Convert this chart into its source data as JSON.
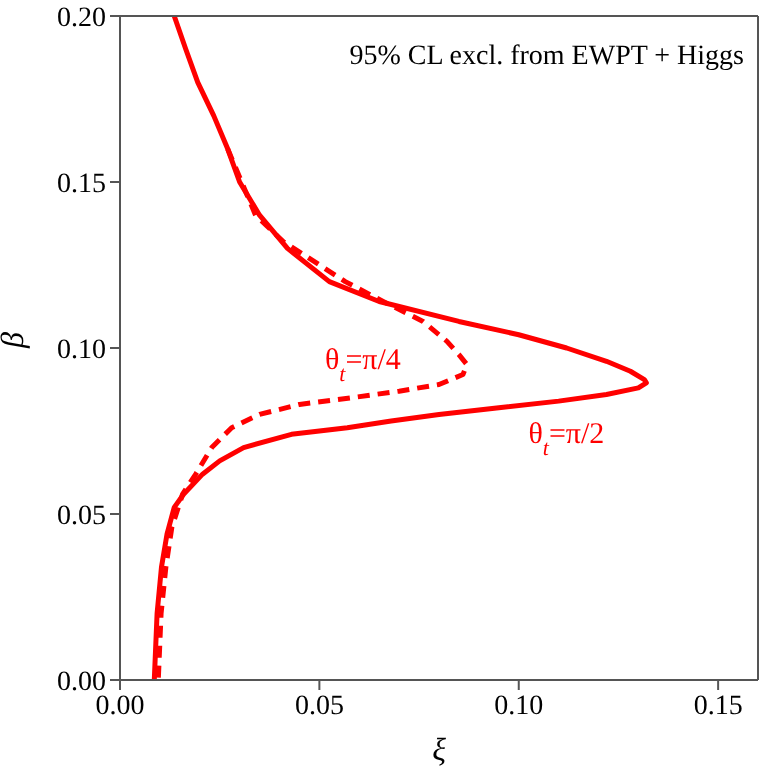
{
  "chart_data": {
    "type": "line",
    "title": "95% CL excl. from EWPT + Higgs",
    "xlabel": "ξ",
    "ylabel": "β",
    "xlim": [
      0,
      0.16
    ],
    "ylim": [
      0,
      0.2
    ],
    "xticks": [
      {
        "value": 0,
        "label": "0.00"
      },
      {
        "value": 0.05,
        "label": "0.05"
      },
      {
        "value": 0.1,
        "label": "0.10"
      },
      {
        "value": 0.15,
        "label": "0.15"
      }
    ],
    "yticks": [
      {
        "value": 0,
        "label": "0.00"
      },
      {
        "value": 0.05,
        "label": "0.05"
      },
      {
        "value": 0.1,
        "label": "0.10"
      },
      {
        "value": 0.15,
        "label": "0.15"
      },
      {
        "value": 0.2,
        "label": "0.20"
      }
    ],
    "grid": false,
    "marker": "none",
    "series": [
      {
        "name": "θ$_{t}$=π/2",
        "color": "#ff0000",
        "line_style": "solid",
        "x": [
          0.0136,
          0.0165,
          0.0195,
          0.0235,
          0.027,
          0.03,
          0.035,
          0.042,
          0.0525,
          0.065,
          0.085,
          0.1,
          0.112,
          0.122,
          0.128,
          0.1315,
          0.132,
          0.13,
          0.122,
          0.11,
          0.095,
          0.08,
          0.068,
          0.057,
          0.043,
          0.031,
          0.025,
          0.0207,
          0.016,
          0.0136,
          0.0118,
          0.0104,
          0.0093,
          0.0086
        ],
        "values": [
          0.2,
          0.19,
          0.18,
          0.17,
          0.16,
          0.15,
          0.14,
          0.13,
          0.12,
          0.114,
          0.108,
          0.104,
          0.1,
          0.096,
          0.093,
          0.0905,
          0.0895,
          0.088,
          0.086,
          0.084,
          0.082,
          0.08,
          0.078,
          0.076,
          0.074,
          0.07,
          0.066,
          0.062,
          0.056,
          0.052,
          0.044,
          0.034,
          0.02,
          0
        ]
      },
      {
        "name": "θ$_{t}$=π/4",
        "color": "#ff0000",
        "line_style": "dashed",
        "x": [
          0.027,
          0.0305,
          0.034,
          0.041,
          0.0565,
          0.066,
          0.076,
          0.082,
          0.085,
          0.087,
          0.086,
          0.08,
          0.07,
          0.058,
          0.045,
          0.035,
          0.028,
          0.023,
          0.019,
          0.0157,
          0.013,
          0.0115,
          0.0103,
          0.0096
        ],
        "values": [
          0.16,
          0.15,
          0.14,
          0.132,
          0.12,
          0.114,
          0.108,
          0.102,
          0.098,
          0.095,
          0.092,
          0.089,
          0.087,
          0.085,
          0.083,
          0.08,
          0.076,
          0.07,
          0.062,
          0.056,
          0.046,
          0.034,
          0.02,
          0
        ]
      }
    ]
  }
}
